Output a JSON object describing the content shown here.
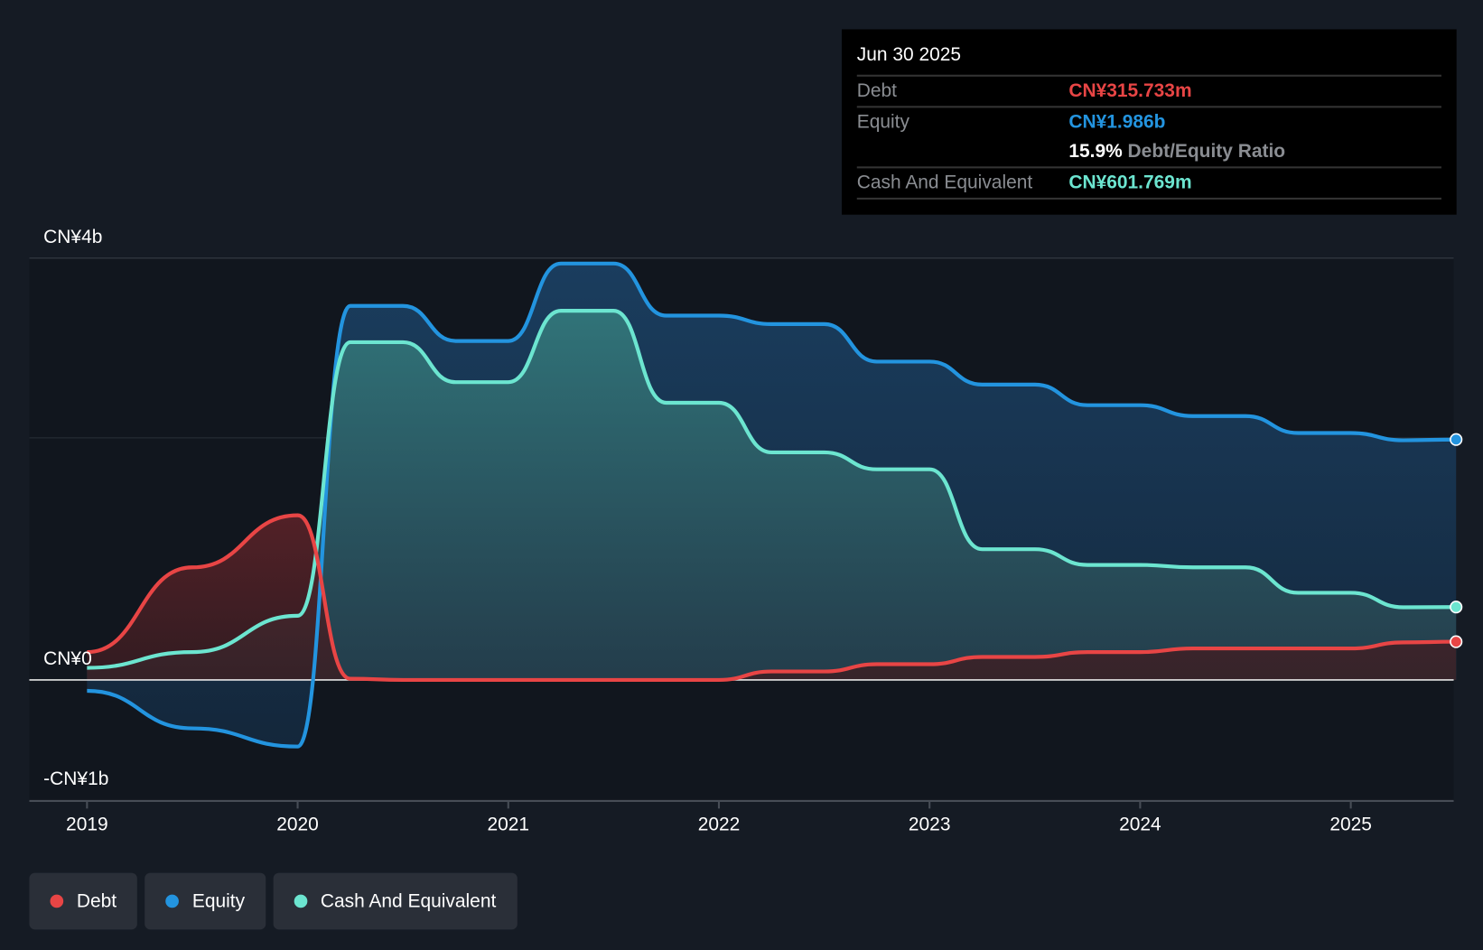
{
  "tooltip": {
    "date": "Jun 30 2025",
    "debt_label": "Debt",
    "debt_value": "CN¥315.733m",
    "equity_label": "Equity",
    "equity_value": "CN¥1.986b",
    "ratio_value": "15.9%",
    "ratio_label": "Debt/Equity Ratio",
    "cash_label": "Cash And Equivalent",
    "cash_value": "CN¥601.769m"
  },
  "legend": [
    {
      "label": "Debt",
      "color": "#e84545"
    },
    {
      "label": "Equity",
      "color": "#2394df"
    },
    {
      "label": "Cash And Equivalent",
      "color": "#6ce5d0"
    }
  ],
  "chart_data": {
    "type": "area",
    "title": "",
    "xlabel": "",
    "ylabel": "",
    "y_tick_labels": [
      "CN¥4b",
      "CN¥0",
      "-CN¥1b"
    ],
    "x_tick_labels": [
      "2019",
      "2020",
      "2021",
      "2022",
      "2023",
      "2024",
      "2025"
    ],
    "ylim": [
      -1,
      3.48
    ],
    "xlim": [
      2018.73,
      2025.5
    ],
    "unit": "CN¥ billions",
    "x": [
      2019.0,
      2019.5,
      2020.0,
      2020.25,
      2020.5,
      2020.75,
      2021.0,
      2021.25,
      2021.5,
      2021.75,
      2022.0,
      2022.25,
      2022.5,
      2022.75,
      2023.0,
      2023.25,
      2023.5,
      2023.75,
      2024.0,
      2024.25,
      2024.5,
      2024.75,
      2025.0,
      2025.25,
      2025.5
    ],
    "series": [
      {
        "name": "Equity",
        "color": "#2394df",
        "values": [
          -0.09,
          -0.4,
          -0.55,
          3.09,
          3.09,
          2.8,
          2.8,
          3.44,
          3.44,
          3.01,
          3.01,
          2.94,
          2.94,
          2.63,
          2.63,
          2.44,
          2.44,
          2.27,
          2.27,
          2.18,
          2.18,
          2.04,
          2.04,
          1.98,
          1.986
        ]
      },
      {
        "name": "Cash And Equivalent",
        "color": "#6ce5d0",
        "values": [
          0.1,
          0.23,
          0.53,
          2.79,
          2.79,
          2.46,
          2.46,
          3.05,
          3.05,
          2.29,
          2.29,
          1.88,
          1.88,
          1.74,
          1.74,
          1.08,
          1.08,
          0.95,
          0.95,
          0.93,
          0.93,
          0.72,
          0.72,
          0.6,
          0.602
        ]
      },
      {
        "name": "Debt",
        "color": "#e84545",
        "values": [
          0.23,
          0.93,
          1.36,
          0.01,
          0.0,
          0.0,
          0.0,
          0.0,
          0.0,
          0.0,
          0.0,
          0.07,
          0.07,
          0.13,
          0.13,
          0.19,
          0.19,
          0.23,
          0.23,
          0.26,
          0.26,
          0.26,
          0.26,
          0.31,
          0.316
        ]
      }
    ]
  }
}
